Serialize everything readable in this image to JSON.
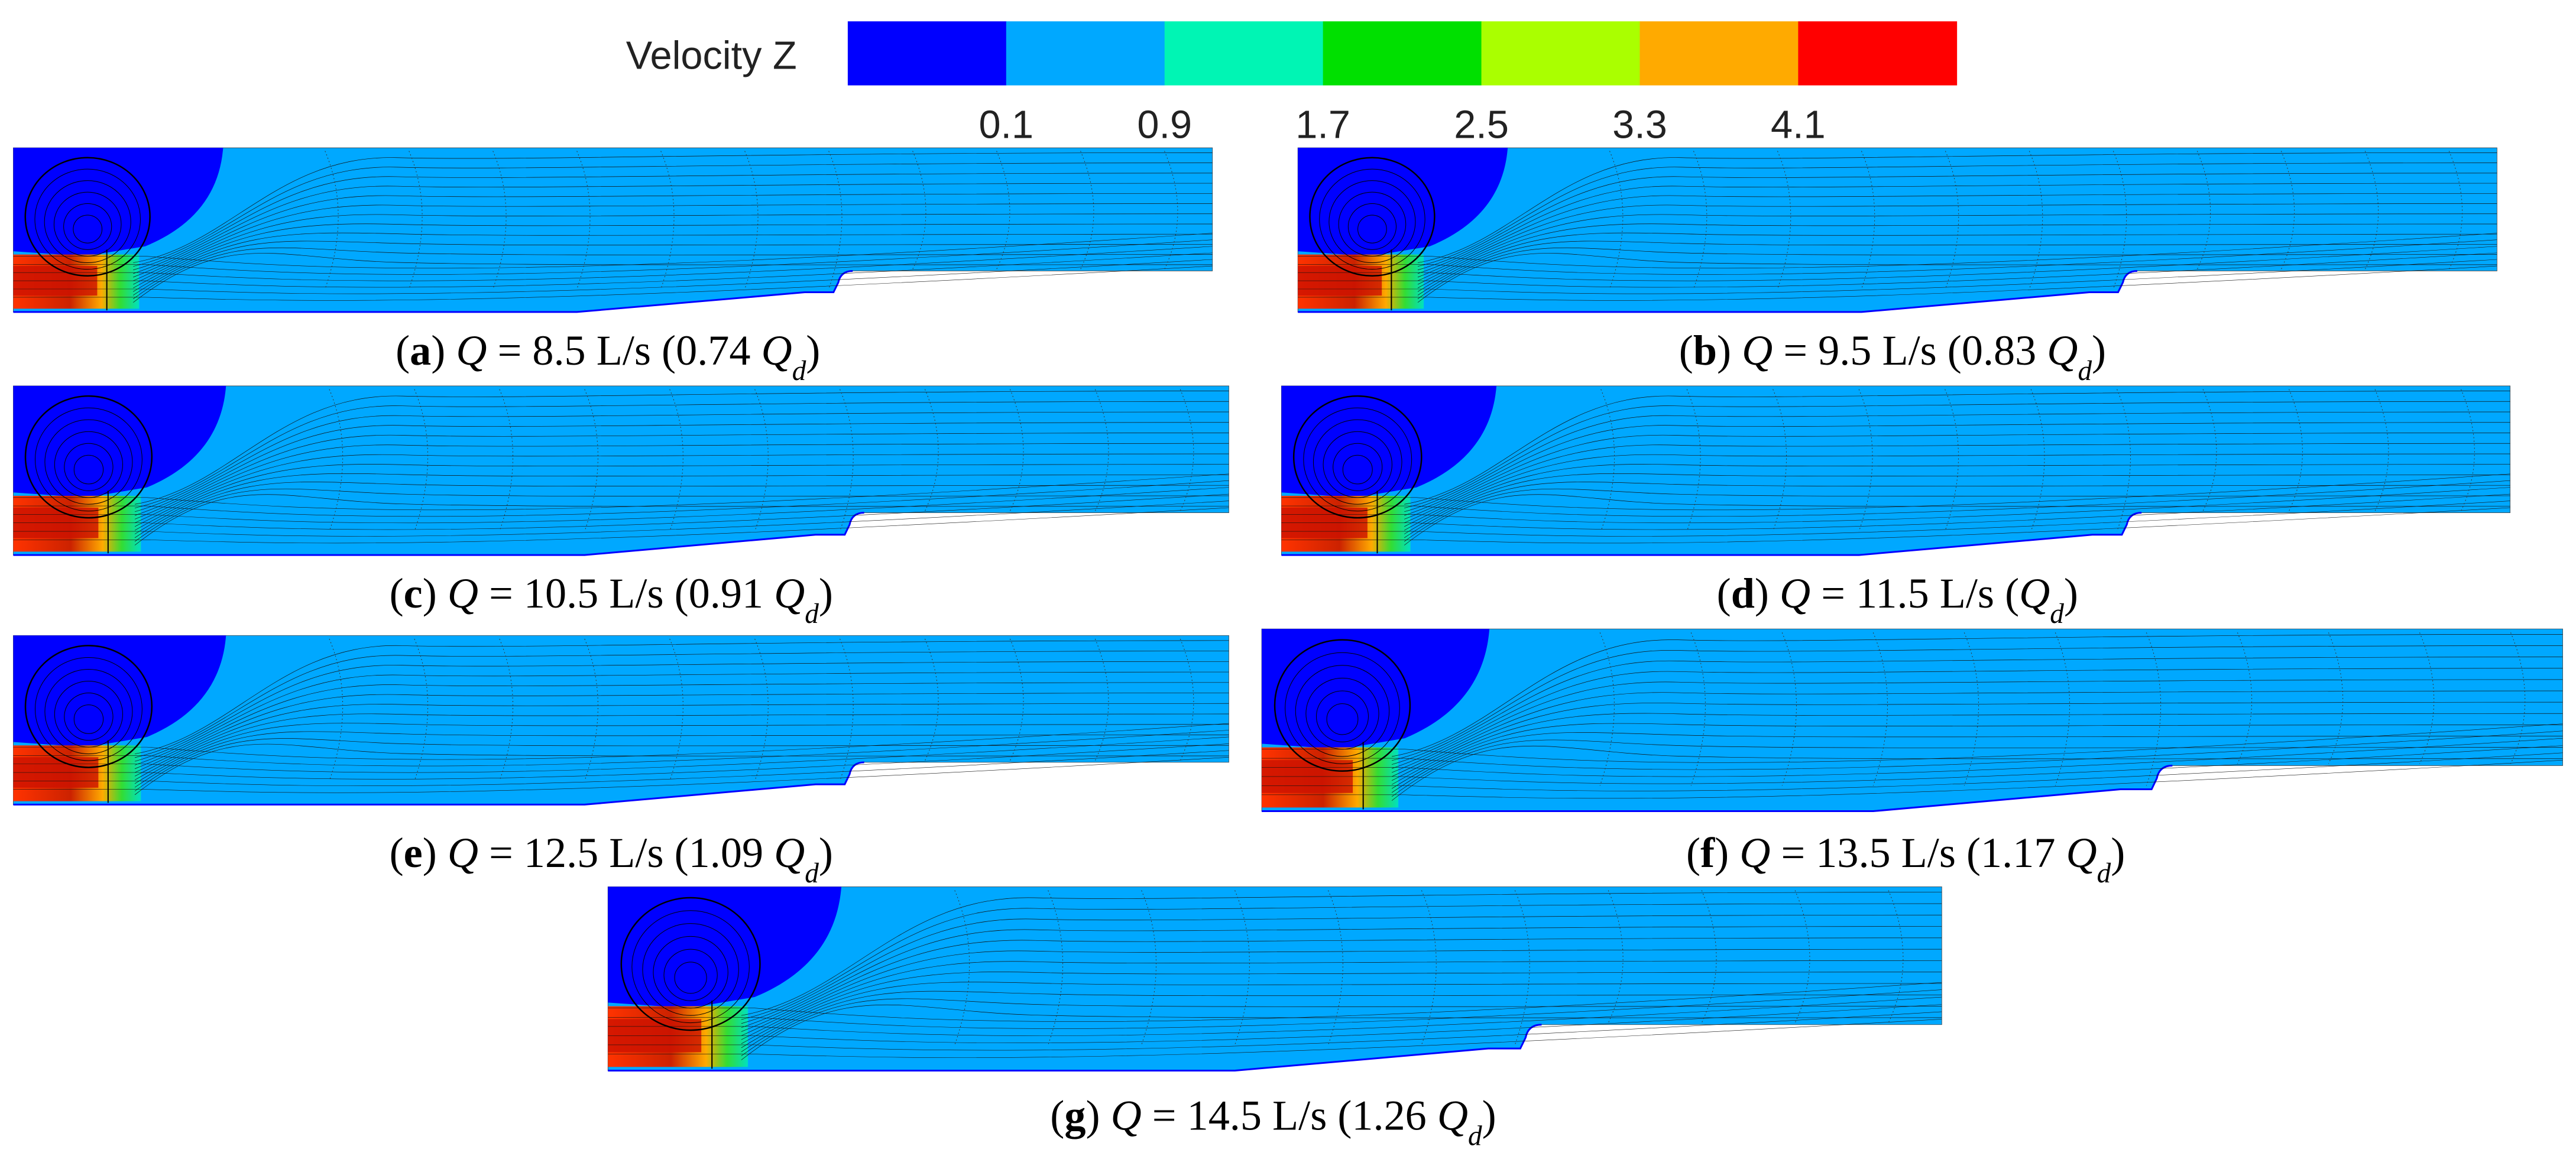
{
  "legend": {
    "title": "Velocity Z",
    "ticks": [
      0.1,
      0.9,
      1.7,
      2.5,
      3.3,
      4.1
    ],
    "colors": [
      "#0000ff",
      "#00a8ff",
      "#00f5b4",
      "#00e000",
      "#aaff00",
      "#ffaa00",
      "#ff0000"
    ]
  },
  "panels": [
    {
      "caption": [
        "(",
        "a",
        ") ",
        "Q",
        " = 8.5 L/s (0.74 ",
        "Q",
        "d",
        ")"
      ]
    },
    {
      "caption": [
        "(",
        "b",
        ") ",
        "Q",
        " = 9.5 L/s (0.83 ",
        "Q",
        "d",
        ")"
      ]
    },
    {
      "caption": [
        "(",
        "c",
        ") ",
        "Q",
        " = 10.5 L/s (0.91 ",
        "Q",
        "d",
        ")"
      ]
    },
    {
      "caption": [
        "(",
        "d",
        ") ",
        "Q",
        " = 11.5 L/s (",
        "Q",
        "d",
        ")"
      ]
    },
    {
      "caption": [
        "(",
        "e",
        ") ",
        "Q",
        " = 12.5 L/s (1.09 ",
        "Q",
        "d",
        ")"
      ]
    },
    {
      "caption": [
        "(",
        "f",
        ") ",
        "Q",
        " = 13.5 L/s (1.17 ",
        "Q",
        "d",
        ")"
      ]
    },
    {
      "caption": [
        "(",
        "g",
        ") ",
        "Q",
        " = 14.5 L/s (1.26 ",
        "Q",
        "d",
        ")"
      ]
    }
  ]
}
